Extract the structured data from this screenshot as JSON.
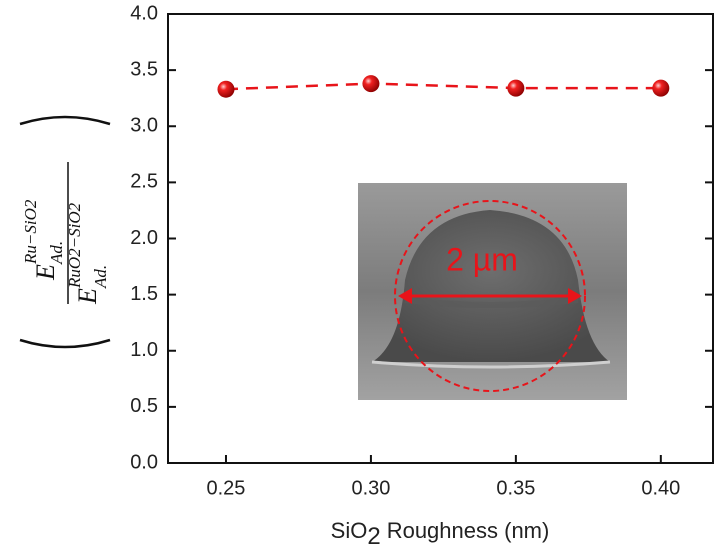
{
  "chart_data": {
    "type": "line",
    "x_label": {
      "before_subscript": "SiO",
      "subscript": "2",
      "after_subscript": "Roughness (nm)"
    },
    "y_label": {
      "symbol": "E",
      "subscript": "Ad.",
      "numerator_superscript": "Ru−SiO2",
      "denominator_superscript": "RuO2−SiO2"
    },
    "x": [
      0.25,
      0.3,
      0.35,
      0.4
    ],
    "series": [
      {
        "color": "#e8141a",
        "values": [
          3.33,
          3.38,
          3.34,
          3.34
        ]
      }
    ],
    "xlim": [
      0.23,
      0.418
    ],
    "ylim": [
      0,
      4.0
    ],
    "xticks": [
      0.25,
      {
        "value": 0.3,
        "label": "0.30"
      },
      0.35,
      {
        "value": 0.4,
        "label": "0.40"
      }
    ],
    "yticks": [
      {
        "value": 0,
        "label": "0.0"
      },
      0.5,
      {
        "value": 1,
        "label": "1.0"
      },
      1.5,
      {
        "value": 2,
        "label": "2.0"
      },
      2.5,
      {
        "value": 3,
        "label": "3.0"
      },
      3.5,
      {
        "value": 4,
        "label": "4.0"
      }
    ],
    "inset_annotation": "2 µm"
  }
}
